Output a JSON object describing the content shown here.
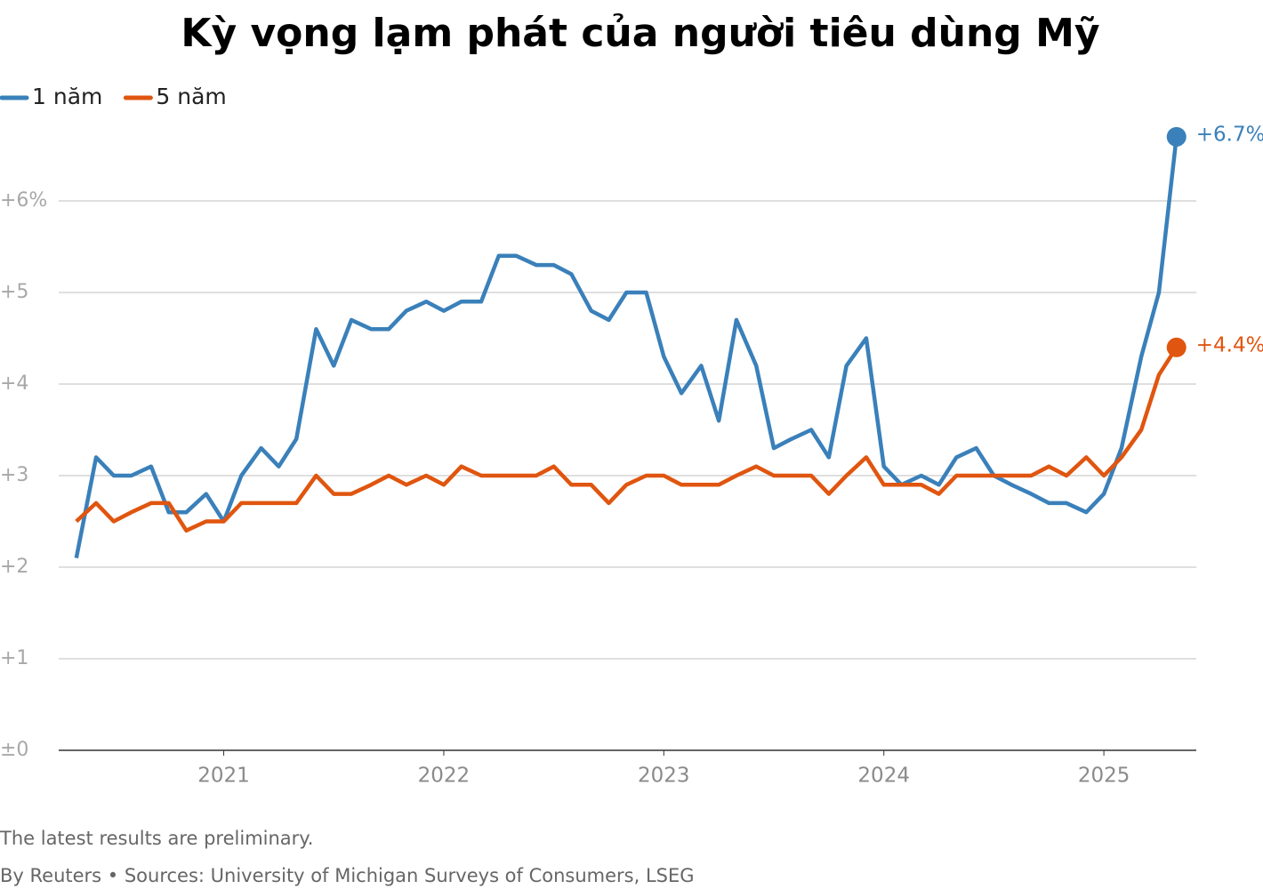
{
  "chart_data": {
    "type": "line",
    "title": "Kỳ vọng lạm phát của người tiêu dùng Mỹ",
    "notes": [
      "The latest results are preliminary.",
      "By Reuters • Sources: University of Michigan Surveys of Consumers, LSEG"
    ],
    "x": [
      2020.33,
      2020.42,
      2020.5,
      2020.58,
      2020.67,
      2020.75,
      2020.83,
      2020.92,
      2021.0,
      2021.08,
      2021.17,
      2021.25,
      2021.33,
      2021.42,
      2021.5,
      2021.58,
      2021.67,
      2021.75,
      2021.83,
      2021.92,
      2022.0,
      2022.08,
      2022.17,
      2022.25,
      2022.33,
      2022.42,
      2022.5,
      2022.58,
      2022.67,
      2022.75,
      2022.83,
      2022.92,
      2023.0,
      2023.08,
      2023.17,
      2023.25,
      2023.33,
      2023.42,
      2023.5,
      2023.58,
      2023.67,
      2023.75,
      2023.83,
      2023.92,
      2024.0,
      2024.08,
      2024.17,
      2024.25,
      2024.33,
      2024.42,
      2024.5,
      2024.58,
      2024.67,
      2024.75,
      2024.83,
      2024.92,
      2025.0,
      2025.08,
      2025.17,
      2025.25,
      2025.33
    ],
    "series": [
      {
        "name": "1 năm",
        "color": "#3a80ba",
        "values": [
          2.1,
          3.2,
          3.0,
          3.0,
          3.1,
          2.6,
          2.6,
          2.8,
          2.5,
          3.0,
          3.3,
          3.1,
          3.4,
          4.6,
          4.2,
          4.7,
          4.6,
          4.6,
          4.8,
          4.9,
          4.8,
          4.9,
          4.9,
          5.4,
          5.4,
          5.3,
          5.3,
          5.2,
          4.8,
          4.7,
          5.0,
          5.0,
          4.3,
          3.9,
          4.2,
          3.6,
          4.7,
          4.2,
          3.3,
          3.4,
          3.5,
          3.2,
          4.2,
          4.5,
          3.1,
          2.9,
          3.0,
          2.9,
          3.2,
          3.3,
          3.0,
          2.9,
          2.8,
          2.7,
          2.7,
          2.6,
          2.8,
          3.3,
          4.3,
          5.0,
          6.7
        ],
        "value_labels": [
          null,
          null,
          null,
          null,
          null,
          null,
          null,
          null,
          null,
          null,
          null,
          null,
          null,
          null,
          null,
          null,
          null,
          null,
          null,
          null,
          null,
          null,
          null,
          null,
          null,
          null,
          null,
          null,
          null,
          null,
          null,
          null,
          null,
          null,
          null,
          null,
          null,
          null,
          null,
          null,
          null,
          null,
          null,
          null,
          null,
          null,
          null,
          null,
          null,
          null,
          null,
          null,
          null,
          null,
          null,
          null,
          null,
          null,
          null,
          null,
          "+6.7%"
        ]
      },
      {
        "name": "5 năm",
        "color": "#e0550f",
        "values": [
          2.5,
          2.7,
          2.5,
          2.6,
          2.7,
          2.7,
          2.4,
          2.5,
          2.5,
          2.7,
          2.7,
          2.7,
          2.7,
          3.0,
          2.8,
          2.8,
          2.9,
          3.0,
          2.9,
          3.0,
          2.9,
          3.1,
          3.0,
          3.0,
          3.0,
          3.0,
          3.1,
          2.9,
          2.9,
          2.7,
          2.9,
          3.0,
          3.0,
          2.9,
          2.9,
          2.9,
          3.0,
          3.1,
          3.0,
          3.0,
          3.0,
          2.8,
          3.0,
          3.2,
          2.9,
          2.9,
          2.9,
          2.8,
          3.0,
          3.0,
          3.0,
          3.0,
          3.0,
          3.1,
          3.0,
          3.2,
          3.0,
          3.2,
          3.5,
          4.1,
          4.4
        ],
        "value_labels": [
          null,
          null,
          null,
          null,
          null,
          null,
          null,
          null,
          null,
          null,
          null,
          null,
          null,
          null,
          null,
          null,
          null,
          null,
          null,
          null,
          null,
          null,
          null,
          null,
          null,
          null,
          null,
          null,
          null,
          null,
          null,
          null,
          null,
          null,
          null,
          null,
          null,
          null,
          null,
          null,
          null,
          null,
          null,
          null,
          null,
          null,
          null,
          null,
          null,
          null,
          null,
          null,
          null,
          null,
          null,
          null,
          null,
          null,
          null,
          null,
          "+4.4%"
        ]
      }
    ],
    "xlim": [
      2020.25,
      2025.42
    ],
    "xticks": [
      2021,
      2022,
      2023,
      2024,
      2025
    ],
    "ylim": [
      0,
      7
    ],
    "yticks": [
      {
        "value": 0,
        "label": "±0"
      },
      {
        "value": 1,
        "label": "+1"
      },
      {
        "value": 2,
        "label": "+2"
      },
      {
        "value": 3,
        "label": "+3"
      },
      {
        "value": 4,
        "label": "+4"
      },
      {
        "value": 5,
        "label": "+5"
      },
      {
        "value": 6,
        "label": "+6%"
      }
    ],
    "grid": true,
    "legend": "top-left"
  }
}
